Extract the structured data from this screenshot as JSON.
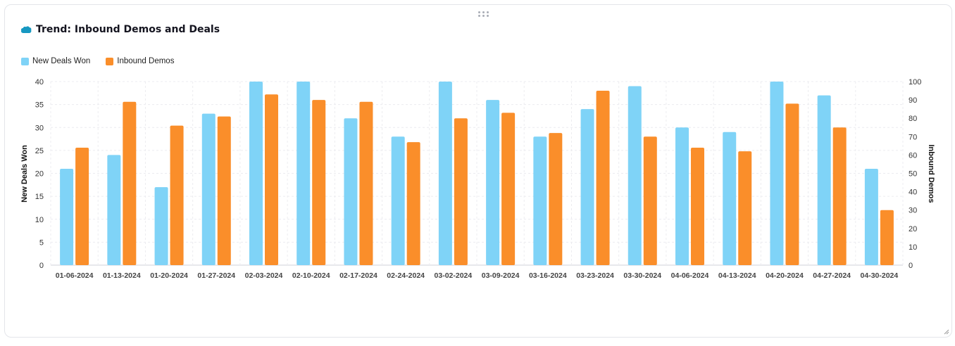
{
  "title": "Trend: Inbound Demos and Deals",
  "icons": {
    "header": "salesforce-cloud-icon",
    "drag": "drag-handle-icon",
    "resize": "resize-handle-icon"
  },
  "colors": {
    "new_deals": "#7FD3F7",
    "inbound_demos": "#FA8E2A"
  },
  "legend": [
    {
      "label": "New Deals Won",
      "color": "#7FD3F7"
    },
    {
      "label": "Inbound Demos",
      "color": "#FA8E2A"
    }
  ],
  "chart_data": {
    "type": "bar",
    "categories": [
      "01-06-2024",
      "01-13-2024",
      "01-20-2024",
      "01-27-2024",
      "02-03-2024",
      "02-10-2024",
      "02-17-2024",
      "02-24-2024",
      "03-02-2024",
      "03-09-2024",
      "03-16-2024",
      "03-23-2024",
      "03-30-2024",
      "04-06-2024",
      "04-13-2024",
      "04-20-2024",
      "04-27-2024",
      "04-30-2024"
    ],
    "series": [
      {
        "name": "New Deals Won",
        "axis": "left",
        "color": "#7FD3F7",
        "values": [
          21,
          24,
          17,
          33,
          40,
          40,
          32,
          28,
          40,
          36,
          28,
          34,
          39,
          30,
          29,
          40,
          37,
          21
        ]
      },
      {
        "name": "Inbound Demos",
        "axis": "right",
        "color": "#FA8E2A",
        "values": [
          64,
          89,
          76,
          81,
          93,
          90,
          89,
          67,
          80,
          83,
          72,
          95,
          70,
          64,
          62,
          88,
          75,
          30
        ]
      }
    ],
    "ylabel_left": "New Deals Won",
    "ylabel_right": "Inbound Demos",
    "ylim_left": [
      0,
      40
    ],
    "ylim_right": [
      0,
      100
    ],
    "yticks_left": [
      "0",
      "5",
      "10",
      "15",
      "20",
      "25",
      "30",
      "35",
      "40"
    ],
    "yticks_right": [
      "0",
      "10",
      "20",
      "30",
      "40",
      "50",
      "60",
      "70",
      "80",
      "90",
      "100"
    ],
    "grid": true,
    "legend_position": "top-left"
  }
}
